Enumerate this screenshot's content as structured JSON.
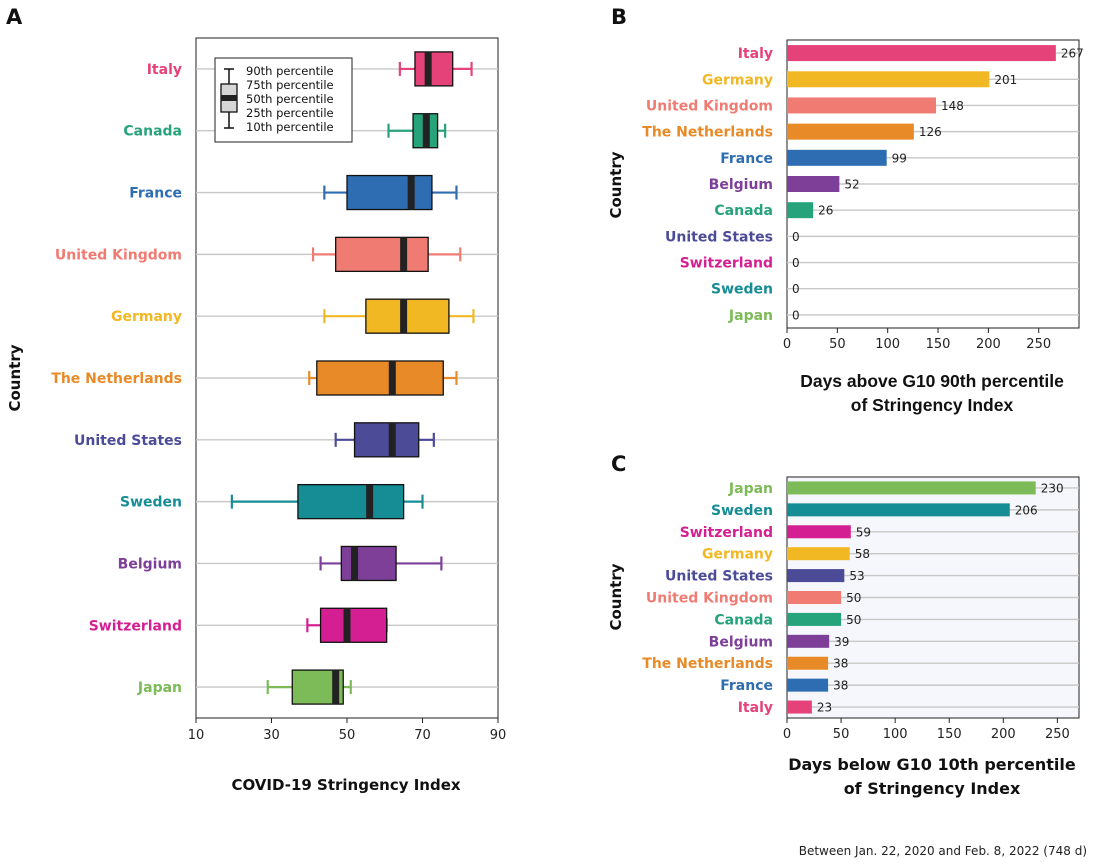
{
  "footnote": "Between Jan. 22, 2020 and Feb. 8, 2022 (748 d)",
  "colors": {
    "Italy": "#e5427a",
    "Canada": "#27a37b",
    "France": "#2f6db3",
    "United Kingdom": "#f07b72",
    "Germany": "#f2b824",
    "The Netherlands": "#e88a27",
    "United States": "#4b4b97",
    "Sweden": "#168c95",
    "Belgium": "#7d3f98",
    "Switzerland": "#d41f92",
    "Japan": "#7cbb57"
  },
  "chart_data": [
    {
      "panel": "A",
      "type": "box",
      "xlabel": "COVID-19 Stringency Index",
      "ylabel": "Country",
      "xlim": [
        10,
        90
      ],
      "xticks": [
        10,
        30,
        50,
        70,
        90
      ],
      "grid": true,
      "legend": {
        "position": "top-left",
        "entries": [
          "90th percentile",
          "75th percentile",
          "50th percentile",
          "25th percentile",
          "10th percentile"
        ]
      },
      "series": [
        {
          "country": "Italy",
          "p10": 64,
          "p25": 68,
          "p50": 71.5,
          "p75": 78,
          "p90": 83
        },
        {
          "country": "Canada",
          "p10": 61,
          "p25": 67.5,
          "p50": 71,
          "p75": 74,
          "p90": 76
        },
        {
          "country": "France",
          "p10": 44,
          "p25": 50,
          "p50": 67,
          "p75": 72.5,
          "p90": 79
        },
        {
          "country": "United Kingdom",
          "p10": 41,
          "p25": 47,
          "p50": 65,
          "p75": 71.5,
          "p90": 80
        },
        {
          "country": "Germany",
          "p10": 44,
          "p25": 55,
          "p50": 65,
          "p75": 77,
          "p90": 83.5
        },
        {
          "country": "The Netherlands",
          "p10": 40,
          "p25": 42,
          "p50": 62,
          "p75": 75.5,
          "p90": 79
        },
        {
          "country": "United States",
          "p10": 47,
          "p25": 52,
          "p50": 62,
          "p75": 69,
          "p90": 73
        },
        {
          "country": "Sweden",
          "p10": 19.5,
          "p25": 37,
          "p50": 56,
          "p75": 65,
          "p90": 70
        },
        {
          "country": "Belgium",
          "p10": 43,
          "p25": 48.5,
          "p50": 52,
          "p75": 63,
          "p90": 75
        },
        {
          "country": "Switzerland",
          "p10": 39.5,
          "p25": 43,
          "p50": 50,
          "p75": 60.5,
          "p90": 60.5
        },
        {
          "country": "Japan",
          "p10": 29,
          "p25": 35.5,
          "p50": 47,
          "p75": 49,
          "p90": 51
        }
      ]
    },
    {
      "panel": "B",
      "type": "bar",
      "orientation": "horizontal",
      "xlabel": "Days above G10 90th percentile of Stringency Index",
      "ylabel": "Country",
      "xlim": [
        0,
        290
      ],
      "xticks": [
        0,
        50,
        100,
        150,
        200,
        250
      ],
      "grid": true,
      "categories": [
        "Italy",
        "Germany",
        "United Kingdom",
        "The Netherlands",
        "France",
        "Belgium",
        "Canada",
        "United States",
        "Switzerland",
        "Sweden",
        "Japan"
      ],
      "values": [
        267,
        201,
        148,
        126,
        99,
        52,
        26,
        0,
        0,
        0,
        0
      ]
    },
    {
      "panel": "C",
      "type": "bar",
      "orientation": "horizontal",
      "xlabel": "Days below G10 10th percentile of Stringency Index",
      "ylabel": "Country",
      "xlim": [
        0,
        270
      ],
      "xticks": [
        0,
        50,
        100,
        150,
        200,
        250
      ],
      "grid": true,
      "categories": [
        "Japan",
        "Sweden",
        "Switzerland",
        "Germany",
        "United States",
        "United Kingdom",
        "Canada",
        "Belgium",
        "The Netherlands",
        "France",
        "Italy"
      ],
      "values": [
        230,
        206,
        59,
        58,
        53,
        50,
        50,
        39,
        38,
        38,
        23
      ]
    }
  ]
}
